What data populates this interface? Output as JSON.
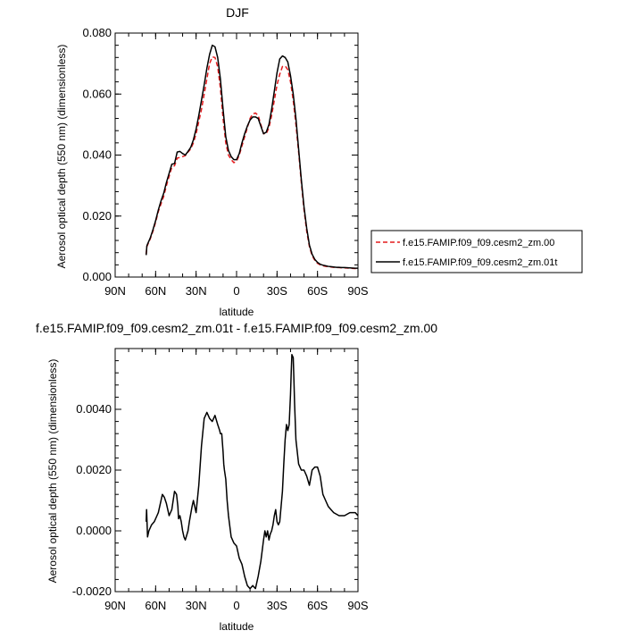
{
  "chart_data": [
    {
      "type": "line",
      "title": "DJF",
      "xlabel": "latitude",
      "ylabel": "Aerosol optical depth (550 nm) (dimensionless)",
      "x_ticks": [
        {
          "value": 90,
          "label": "90N"
        },
        {
          "value": 60,
          "label": "60N"
        },
        {
          "value": 30,
          "label": "30N"
        },
        {
          "value": 0,
          "label": "0"
        },
        {
          "value": -30,
          "label": "30S"
        },
        {
          "value": -60,
          "label": "60S"
        },
        {
          "value": -90,
          "label": "90S"
        }
      ],
      "y_ticks": [
        {
          "value": 0.0,
          "label": "0.000"
        },
        {
          "value": 0.02,
          "label": "0.020"
        },
        {
          "value": 0.04,
          "label": "0.040"
        },
        {
          "value": 0.06,
          "label": "0.060"
        },
        {
          "value": 0.08,
          "label": "0.080"
        }
      ],
      "xlim": [
        90,
        -90
      ],
      "ylim": [
        0.0,
        0.08
      ],
      "legend_position": "right",
      "series": [
        {
          "name": "f.e15.FAMIP.f09_f09.cesm2_zm.00",
          "color": "#e41a1c",
          "dash": "dashed",
          "x": [
            67,
            66.5,
            66,
            64,
            62,
            60,
            58,
            56,
            54,
            52,
            50,
            48,
            46,
            44,
            42,
            40,
            38,
            36,
            34,
            32,
            30,
            28,
            26,
            24,
            22,
            20,
            18,
            16,
            14,
            12,
            10,
            8,
            6,
            4,
            2,
            0,
            -2,
            -4,
            -6,
            -8,
            -10,
            -12,
            -14,
            -16,
            -18,
            -20,
            -22,
            -24,
            -26,
            -28,
            -30,
            -32,
            -34,
            -36,
            -38,
            -40,
            -42,
            -44,
            -46,
            -48,
            -50,
            -52,
            -54,
            -56,
            -58,
            -60,
            -62,
            -64,
            -66,
            -68,
            -70,
            -72,
            -74,
            -76,
            -78,
            -80,
            -84,
            -88,
            -90
          ],
          "y": [
            0.0075,
            0.01,
            0.0105,
            0.0125,
            0.015,
            0.018,
            0.0215,
            0.024,
            0.0265,
            0.03,
            0.033,
            0.036,
            0.0365,
            0.039,
            0.0392,
            0.0395,
            0.0398,
            0.041,
            0.042,
            0.044,
            0.047,
            0.051,
            0.055,
            0.06,
            0.065,
            0.07,
            0.0722,
            0.072,
            0.069,
            0.062,
            0.052,
            0.044,
            0.04,
            0.0385,
            0.0375,
            0.038,
            0.04,
            0.043,
            0.046,
            0.049,
            0.052,
            0.0535,
            0.0538,
            0.053,
            0.05,
            0.047,
            0.047,
            0.049,
            0.053,
            0.058,
            0.063,
            0.0665,
            0.069,
            0.0692,
            0.068,
            0.064,
            0.058,
            0.05,
            0.041,
            0.031,
            0.022,
            0.015,
            0.01,
            0.007,
            0.0055,
            0.0045,
            0.004,
            0.0037,
            0.0035,
            0.0034,
            0.0033,
            0.0032,
            0.0031,
            0.0031,
            0.003,
            0.003,
            0.0029,
            0.0028,
            0.0028
          ]
        },
        {
          "name": "f.e15.FAMIP.f09_f09.cesm2_zm.01t",
          "color": "#000000",
          "dash": "solid",
          "x": [
            67,
            66.5,
            66,
            64,
            62,
            60,
            58,
            56,
            54,
            52,
            50,
            48,
            46,
            44,
            42,
            40,
            38,
            36,
            34,
            32,
            30,
            28,
            26,
            24,
            22,
            20,
            18,
            16,
            14,
            12,
            10,
            8,
            6,
            4,
            2,
            0,
            -2,
            -4,
            -6,
            -8,
            -10,
            -12,
            -14,
            -16,
            -18,
            -20,
            -22,
            -24,
            -26,
            -28,
            -30,
            -32,
            -34,
            -36,
            -38,
            -40,
            -42,
            -44,
            -46,
            -48,
            -50,
            -52,
            -54,
            -56,
            -58,
            -60,
            -62,
            -64,
            -66,
            -68,
            -70,
            -72,
            -74,
            -76,
            -78,
            -80,
            -84,
            -88,
            -90
          ],
          "y": [
            0.0072,
            0.0102,
            0.0108,
            0.0128,
            0.0155,
            0.0185,
            0.022,
            0.025,
            0.0275,
            0.031,
            0.034,
            0.037,
            0.0372,
            0.041,
            0.0412,
            0.0405,
            0.04,
            0.0412,
            0.0425,
            0.045,
            0.0485,
            0.053,
            0.058,
            0.063,
            0.0685,
            0.073,
            0.076,
            0.0755,
            0.072,
            0.065,
            0.055,
            0.046,
            0.0415,
            0.0395,
            0.0385,
            0.0385,
            0.0405,
            0.044,
            0.047,
            0.0495,
            0.0515,
            0.0525,
            0.0525,
            0.052,
            0.0495,
            0.047,
            0.0475,
            0.05,
            0.055,
            0.061,
            0.067,
            0.0715,
            0.0725,
            0.072,
            0.0705,
            0.066,
            0.06,
            0.052,
            0.042,
            0.032,
            0.023,
            0.016,
            0.0105,
            0.0075,
            0.0058,
            0.0048,
            0.0042,
            0.0039,
            0.0037,
            0.0035,
            0.0034,
            0.0033,
            0.0032,
            0.0032,
            0.0031,
            0.0031,
            0.003,
            0.0029,
            0.0029
          ]
        }
      ]
    },
    {
      "type": "line",
      "title": "f.e15.FAMIP.f09_f09.cesm2_zm.01t - f.e15.FAMIP.f09_f09.cesm2_zm.00",
      "xlabel": "latitude",
      "ylabel": "Aerosol optical depth (550 nm) (dimensionless)",
      "x_ticks": [
        {
          "value": 90,
          "label": "90N"
        },
        {
          "value": 60,
          "label": "60N"
        },
        {
          "value": 30,
          "label": "30N"
        },
        {
          "value": 0,
          "label": "0"
        },
        {
          "value": -30,
          "label": "30S"
        },
        {
          "value": -60,
          "label": "60S"
        },
        {
          "value": -90,
          "label": "90S"
        }
      ],
      "y_ticks": [
        {
          "value": -0.002,
          "label": "-0.0020"
        },
        {
          "value": 0.0,
          "label": "0.0000"
        },
        {
          "value": 0.002,
          "label": "0.0020"
        },
        {
          "value": 0.004,
          "label": "0.0040"
        }
      ],
      "xlim": [
        90,
        -90
      ],
      "ylim": [
        -0.002,
        0.006
      ],
      "series": [
        {
          "color": "#000000",
          "dash": "solid",
          "x": [
            67,
            66.7,
            66.3,
            66,
            65.5,
            65,
            63,
            61,
            59,
            58,
            57,
            56,
            55,
            53.5,
            52,
            50,
            48,
            47,
            46,
            44.5,
            43.5,
            43,
            42,
            41,
            40,
            39,
            38,
            36,
            35,
            33,
            32,
            30,
            28,
            26,
            24,
            22,
            20,
            18,
            16,
            14,
            12.5,
            12,
            11,
            10,
            9.5,
            9,
            8,
            7,
            6,
            4,
            2,
            0,
            -2,
            -4,
            -6,
            -8,
            -10,
            -12,
            -14,
            -16,
            -18,
            -20,
            -21,
            -22,
            -23,
            -24,
            -25,
            -26,
            -27,
            -28,
            -29,
            -30,
            -31,
            -32,
            -33,
            -34,
            -35,
            -36,
            -37,
            -38,
            -39,
            -40,
            -40.5,
            -41,
            -42,
            -42.5,
            -43,
            -44,
            -46,
            -48,
            -50,
            -52,
            -54,
            -56,
            -58,
            -60,
            -62,
            -64,
            -66,
            -68,
            -70,
            -72,
            -76,
            -80,
            -84,
            -88,
            -90
          ],
          "y": [
            0.0003,
            0.0007,
            0.0002,
            -0.0002,
            -0.0001,
            0.0,
            0.0002,
            0.0003,
            0.0005,
            0.0006,
            0.0008,
            0.001,
            0.0012,
            0.0011,
            0.0009,
            0.0005,
            0.0007,
            0.001,
            0.0013,
            0.0012,
            0.0008,
            0.0004,
            0.0005,
            0.0003,
            0.0,
            -0.0002,
            -0.0003,
            0.0,
            0.0003,
            0.0008,
            0.001,
            0.0006,
            0.0015,
            0.0028,
            0.0037,
            0.0039,
            0.0037,
            0.0036,
            0.0038,
            0.0035,
            0.0033,
            0.0032,
            0.0032,
            0.0026,
            0.0022,
            0.002,
            0.0017,
            0.001,
            0.0005,
            -0.0002,
            -0.0004,
            -0.0005,
            -0.0009,
            -0.0011,
            -0.0015,
            -0.0018,
            -0.0019,
            -0.0018,
            -0.0019,
            -0.0015,
            -0.001,
            -0.0003,
            0.0,
            -0.0002,
            0.0,
            -0.0003,
            -0.0001,
            0.0,
            0.0002,
            0.0005,
            0.0007,
            0.0003,
            0.0002,
            0.0003,
            0.0008,
            0.0013,
            0.0022,
            0.003,
            0.0035,
            0.0033,
            0.0035,
            0.0045,
            0.0052,
            0.0058,
            0.0057,
            0.005,
            0.0042,
            0.003,
            0.0022,
            0.002,
            0.002,
            0.0018,
            0.0015,
            0.002,
            0.0021,
            0.0021,
            0.0018,
            0.0012,
            0.001,
            0.0008,
            0.0007,
            0.0006,
            0.0005,
            0.0005,
            0.0006,
            0.0006,
            0.0005
          ]
        }
      ]
    }
  ]
}
